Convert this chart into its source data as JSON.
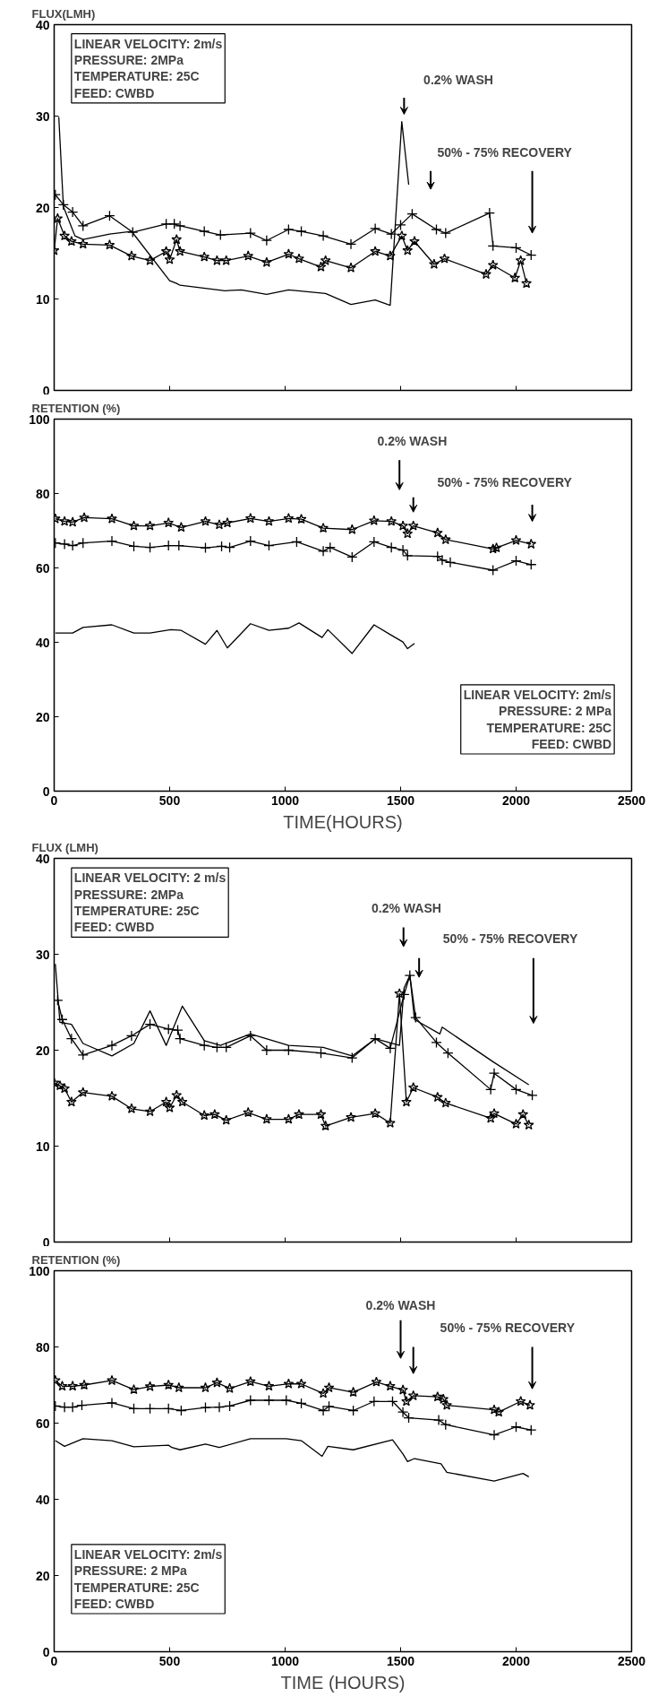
{
  "chart_data": [
    {
      "type": "line",
      "ylabel": "FLUX(LMH)",
      "xlim": [
        0,
        2500
      ],
      "xticks": [
        0,
        500,
        1000,
        1500,
        2000,
        2500
      ],
      "ylim": [
        0,
        40
      ],
      "yticks": [
        0,
        10,
        20,
        30,
        40
      ],
      "tick_labels": "y",
      "grid": false,
      "annotations": [
        "LINEAR VELOCITY: 2m/s\nPRESSURE: 2MPa\nTEMPERATURE: 25C\nFEED: CWBD",
        "0.2% WASH",
        "50% - 75% RECOVERY"
      ],
      "series": [
        {
          "color": "#000000",
          "marker": "cross",
          "x": [
            5,
            40,
            80,
            125,
            240,
            340,
            485,
            520,
            545,
            650,
            720,
            850,
            920,
            1015,
            1070,
            1165,
            1285,
            1390,
            1460,
            1500,
            1550,
            1655,
            1695,
            1885,
            1900,
            2000,
            2065
          ],
          "values": [
            21.4,
            20.3,
            19.5,
            18.0,
            19.1,
            17.3,
            18.2,
            18.2,
            18.0,
            17.4,
            17.0,
            17.2,
            16.4,
            17.6,
            17.4,
            16.9,
            16.0,
            17.7,
            17.1,
            18.1,
            19.3,
            17.6,
            17.2,
            19.4,
            15.8,
            15.6,
            14.8
          ]
        },
        {
          "color": "#000000",
          "marker": "none",
          "x": [
            20,
            40,
            90,
            125,
            240,
            335,
            500,
            530,
            545,
            740,
            810,
            920,
            1015,
            1175,
            1285,
            1390,
            1455,
            1505,
            1535
          ],
          "values": [
            29.9,
            20.1,
            16.9,
            16.5,
            17.1,
            17.4,
            12.0,
            11.7,
            11.5,
            10.9,
            11.0,
            10.5,
            11.0,
            10.6,
            9.4,
            9.9,
            9.3,
            29.4,
            22.5
          ]
        },
        {
          "color": "#000000",
          "marker": "star",
          "x": [
            0,
            15,
            45,
            75,
            125,
            240,
            335,
            415,
            485,
            500,
            530,
            545,
            650,
            705,
            745,
            840,
            920,
            1015,
            1060,
            1155,
            1175,
            1285,
            1390,
            1455,
            1505,
            1530,
            1560,
            1645,
            1690,
            1870,
            1900,
            1995,
            2020,
            2045
          ],
          "values": [
            15.3,
            18.8,
            16.9,
            16.3,
            16.0,
            15.9,
            14.7,
            14.2,
            15.2,
            14.3,
            16.5,
            15.2,
            14.6,
            14.2,
            14.2,
            14.7,
            14.0,
            14.9,
            14.4,
            13.5,
            14.2,
            13.4,
            15.2,
            14.7,
            16.9,
            15.3,
            16.3,
            13.8,
            14.4,
            12.7,
            13.7,
            12.3,
            14.2,
            11.7
          ]
        }
      ]
    },
    {
      "type": "line",
      "ylabel": "RETENTION (%)",
      "xlabel": "TIME(HOURS)",
      "xlim": [
        0,
        2500
      ],
      "xticks": [
        0,
        500,
        1000,
        1500,
        2000,
        2500
      ],
      "ylim": [
        0,
        100
      ],
      "yticks": [
        0,
        20,
        40,
        60,
        80,
        100
      ],
      "grid": false,
      "annotations": [
        "LINEAR VELOCITY: 2m/s\nPRESSURE: 2 MPa\nTEMPERATURE: 25C\nFEED: CWBD",
        "0.2% WASH",
        "50% - 75% RECOVERY"
      ],
      "series": [
        {
          "color": "#000000",
          "marker": "star",
          "x": [
            5,
            45,
            80,
            130,
            250,
            345,
            415,
            495,
            550,
            655,
            715,
            750,
            850,
            930,
            1015,
            1070,
            1165,
            1290,
            1385,
            1460,
            1510,
            1530,
            1555,
            1660,
            1695,
            1900,
            1915,
            2000,
            2065
          ],
          "values": [
            73.2,
            72.5,
            72.3,
            73.5,
            73.2,
            71.3,
            71.3,
            72.1,
            70.9,
            72.5,
            71.6,
            72.1,
            73.3,
            72.5,
            73.3,
            73.1,
            70.7,
            70.3,
            72.7,
            72.5,
            71.3,
            69.2,
            71.3,
            69.4,
            67.6,
            65.1,
            65.4,
            67.4,
            66.4
          ]
        },
        {
          "color": "#000000",
          "marker": "cross",
          "x": [
            5,
            45,
            80,
            125,
            250,
            345,
            415,
            495,
            540,
            655,
            725,
            760,
            850,
            930,
            1050,
            1165,
            1195,
            1290,
            1385,
            1460,
            1510,
            1530,
            1660,
            1680,
            1715,
            1900,
            2000,
            2065
          ],
          "values": [
            66.7,
            66.4,
            66.0,
            66.7,
            67.2,
            65.8,
            65.5,
            66.0,
            66.0,
            65.4,
            65.8,
            65.5,
            67.2,
            66.0,
            67.0,
            64.5,
            65.5,
            62.9,
            67.0,
            65.5,
            64.8,
            63.3,
            63.1,
            62.1,
            61.5,
            59.4,
            61.9,
            60.9
          ]
        },
        {
          "color": "#000000",
          "marker": "none",
          "x": [
            5,
            80,
            125,
            250,
            345,
            415,
            505,
            550,
            655,
            705,
            750,
            850,
            930,
            1015,
            1060,
            1160,
            1185,
            1290,
            1385,
            1460,
            1510,
            1530,
            1560
          ],
          "values": [
            42.5,
            42.5,
            44.0,
            44.7,
            42.5,
            42.5,
            43.4,
            43.2,
            39.5,
            43.2,
            38.5,
            45.0,
            43.2,
            43.8,
            45.2,
            41.3,
            43.4,
            37.0,
            44.7,
            41.9,
            40.1,
            38.3,
            39.7
          ]
        }
      ]
    },
    {
      "type": "line",
      "ylabel": "FLUX (LMH)",
      "xlim": [
        0,
        2500
      ],
      "xticks": [
        0,
        500,
        1000,
        1500,
        2000,
        2500
      ],
      "ylim": [
        0,
        40
      ],
      "yticks": [
        0,
        10,
        20,
        30,
        40
      ],
      "tick_labels": "y",
      "grid": false,
      "annotations": [
        "LINEAR VELOCITY: 2 m/s\nPRESSURE: 2MPa\nTEMPERATURE: 25C\nFEED: CWBD",
        "0.2% WASH",
        "50% - 75% RECOVERY"
      ],
      "series": [
        {
          "color": "#000000",
          "marker": "cross",
          "x": [
            15,
            35,
            75,
            125,
            250,
            335,
            415,
            495,
            535,
            545,
            650,
            705,
            745,
            850,
            920,
            1015,
            1155,
            1290,
            1390,
            1455,
            1515,
            1540,
            1565,
            1655,
            1705,
            1890,
            1905,
            2000,
            2070
          ],
          "values": [
            25.2,
            23.2,
            21.2,
            19.5,
            20.5,
            21.5,
            22.7,
            22.2,
            22.1,
            21.2,
            20.5,
            20.3,
            20.3,
            21.5,
            20.0,
            20.0,
            19.7,
            19.2,
            21.2,
            20.2,
            25.8,
            27.8,
            23.4,
            20.8,
            19.7,
            15.9,
            17.6,
            15.9,
            15.3
          ]
        },
        {
          "color": "#000000",
          "marker": "none",
          "x": [
            5,
            25,
            75,
            125,
            250,
            345,
            415,
            485,
            555,
            650,
            720,
            850,
            1015,
            1165,
            1290,
            1390,
            1495,
            1515,
            1540,
            1560,
            1670,
            1680,
            1900,
            2035,
            2055
          ],
          "values": [
            29.0,
            22.9,
            22.7,
            20.7,
            19.4,
            20.7,
            24.1,
            20.5,
            24.6,
            21.0,
            20.5,
            21.7,
            20.5,
            20.3,
            19.4,
            21.2,
            20.5,
            26.5,
            27.8,
            23.2,
            21.7,
            22.4,
            18.8,
            16.7,
            16.4
          ]
        },
        {
          "color": "#000000",
          "marker": "star",
          "x": [
            0,
            25,
            45,
            75,
            125,
            250,
            335,
            415,
            485,
            500,
            530,
            555,
            650,
            695,
            745,
            840,
            920,
            1015,
            1060,
            1155,
            1175,
            1285,
            1390,
            1455,
            1495,
            1525,
            1555,
            1660,
            1695,
            1890,
            1905,
            2000,
            2030,
            2055
          ],
          "values": [
            16.6,
            16.3,
            16.0,
            14.6,
            15.6,
            15.2,
            13.9,
            13.6,
            14.6,
            14.0,
            15.3,
            14.6,
            13.2,
            13.3,
            12.7,
            13.5,
            12.8,
            12.8,
            13.3,
            13.3,
            12.1,
            13.0,
            13.4,
            12.4,
            25.9,
            14.6,
            16.1,
            15.1,
            14.5,
            12.9,
            13.4,
            12.3,
            13.3,
            12.2
          ]
        }
      ]
    },
    {
      "type": "line",
      "ylabel": "RETENTION (%)",
      "xlabel": "TIME (HOURS)",
      "xlim": [
        0,
        2500
      ],
      "xticks": [
        0,
        500,
        1000,
        1500,
        2000,
        2500
      ],
      "ylim": [
        0,
        100
      ],
      "yticks": [
        0,
        20,
        40,
        60,
        80,
        100
      ],
      "grid": false,
      "annotations": [
        "LINEAR VELOCITY: 2m/s\nPRESSURE: 2 MPa\nTEMPERATURE: 25C\nFEED: CWBD",
        "0.2% WASH",
        "50% - 75% RECOVERY"
      ],
      "series": [
        {
          "color": "#000000",
          "marker": "star",
          "x": [
            5,
            35,
            80,
            130,
            250,
            345,
            415,
            495,
            540,
            655,
            705,
            760,
            850,
            930,
            1015,
            1070,
            1165,
            1190,
            1295,
            1395,
            1455,
            1510,
            1525,
            1555,
            1660,
            1685,
            1700,
            1905,
            1925,
            2020,
            2060
          ],
          "values": [
            71.2,
            69.7,
            69.7,
            70.0,
            71.2,
            68.8,
            69.6,
            70.0,
            69.3,
            69.3,
            70.6,
            69.1,
            70.9,
            69.7,
            70.3,
            70.3,
            67.8,
            69.3,
            68.1,
            70.8,
            69.7,
            68.7,
            65.7,
            67.2,
            66.9,
            66.3,
            64.7,
            63.5,
            62.9,
            65.7,
            64.7
          ]
        },
        {
          "color": "#000000",
          "marker": "cross",
          "x": [
            5,
            45,
            80,
            120,
            250,
            345,
            415,
            495,
            550,
            655,
            715,
            760,
            850,
            930,
            1005,
            1070,
            1165,
            1190,
            1295,
            1385,
            1465,
            1510,
            1535,
            1665,
            1695,
            1905,
            2000,
            2065
          ],
          "values": [
            64.5,
            64.2,
            64.2,
            64.7,
            65.3,
            63.8,
            63.8,
            63.8,
            63.3,
            64.1,
            64.2,
            64.5,
            66.0,
            66.0,
            66.0,
            65.2,
            63.3,
            64.4,
            63.3,
            65.7,
            65.7,
            62.9,
            61.4,
            60.8,
            59.6,
            56.9,
            59.0,
            58.2
          ]
        },
        {
          "color": "#000000",
          "marker": "none",
          "x": [
            5,
            45,
            125,
            250,
            345,
            495,
            510,
            545,
            655,
            715,
            850,
            1005,
            1070,
            1160,
            1185,
            1295,
            1465,
            1510,
            1530,
            1560,
            1675,
            1700,
            1905,
            2030,
            2055
          ],
          "values": [
            55.4,
            53.9,
            55.9,
            55.4,
            53.8,
            54.2,
            53.6,
            53.0,
            54.5,
            53.6,
            55.9,
            55.9,
            55.4,
            51.3,
            53.9,
            53.0,
            55.6,
            51.9,
            49.9,
            50.7,
            49.3,
            47.1,
            44.8,
            46.8,
            45.9
          ]
        }
      ]
    }
  ]
}
